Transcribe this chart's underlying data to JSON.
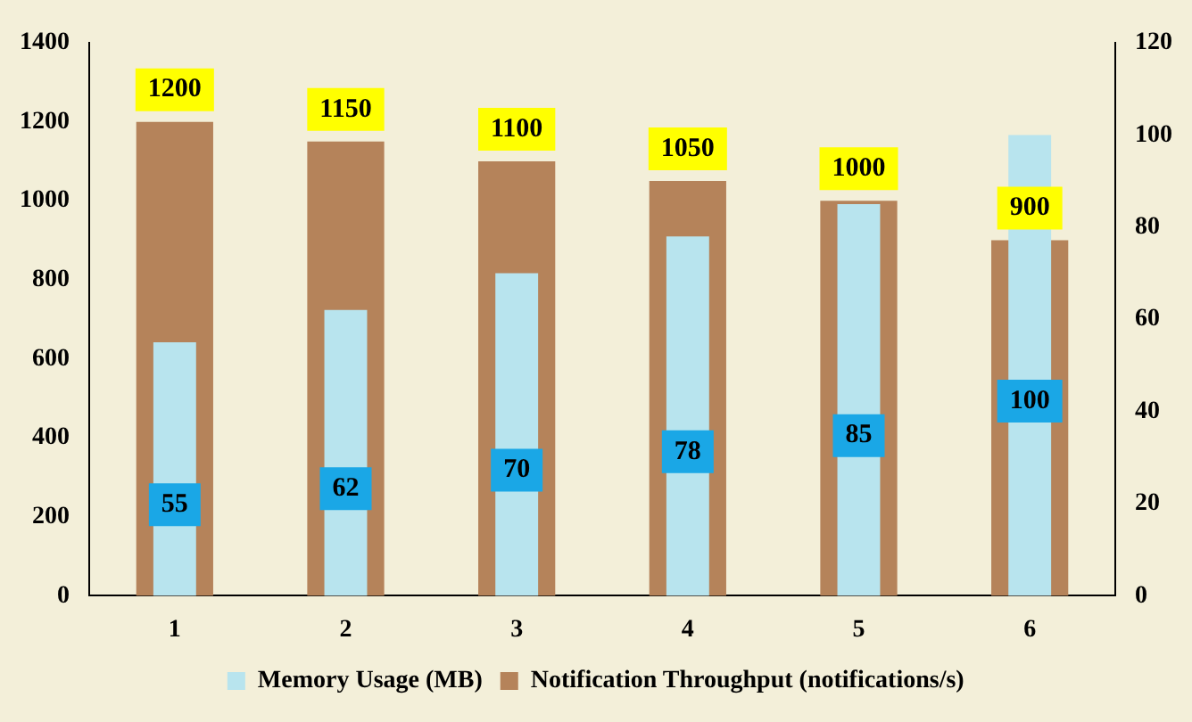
{
  "chart_data": {
    "type": "bar",
    "categories": [
      "1",
      "2",
      "3",
      "4",
      "5",
      "6"
    ],
    "series": [
      {
        "name": "Notification Throughput (notifications/s)",
        "color": "#b5835a",
        "values": [
          1200,
          1150,
          1100,
          1050,
          1000,
          900
        ]
      },
      {
        "name": "Memory Usage (MB)",
        "color": "#b8e4ee",
        "values": [
          55,
          62,
          70,
          78,
          85,
          100
        ],
        "axis": "y2"
      }
    ],
    "ylim": [
      0,
      1400
    ],
    "yticks": [
      0,
      200,
      400,
      600,
      800,
      1000,
      1200,
      1400
    ],
    "y2lim": [
      0,
      120
    ],
    "y2ticks": [
      0,
      20,
      40,
      60,
      80,
      100,
      120
    ],
    "data_labels": true,
    "legend": "bottom",
    "grid": false
  }
}
